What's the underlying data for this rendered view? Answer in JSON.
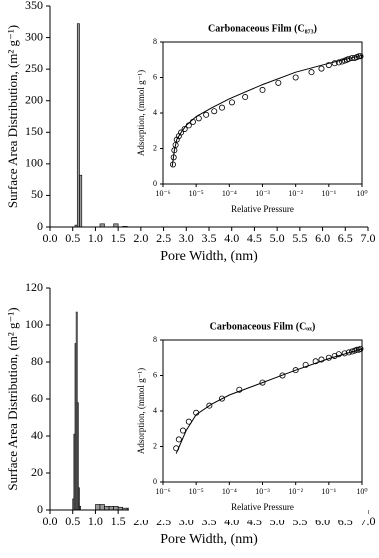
{
  "chart_data": [
    {
      "type": "histogram",
      "xlabel": "Pore Width, (nm)",
      "ylabel": "Surface Area Distribution, (m² g⁻¹)",
      "color": "#9a9a9a",
      "bins": [
        0.55,
        0.6,
        0.65,
        0.7,
        1.1,
        1.2,
        1.4,
        1.5,
        1.6,
        1.7
      ],
      "counts": [
        3,
        322,
        82,
        0,
        5,
        0,
        5,
        0,
        1
      ],
      "xlim": [
        0,
        7
      ],
      "xticks": [
        {
          "value": 0,
          "label": "0.0"
        },
        {
          "value": 0.5,
          "label": "0.5"
        },
        {
          "value": 1,
          "label": "1.0"
        },
        {
          "value": 1.5,
          "label": "1.5"
        },
        {
          "value": 2,
          "label": "2.0"
        },
        {
          "value": 2.5,
          "label": "2.5"
        },
        {
          "value": 3,
          "label": "3.0"
        },
        {
          "value": 3.5,
          "label": "3.5"
        },
        {
          "value": 4,
          "label": "4.0"
        },
        {
          "value": 4.5,
          "label": "4.5"
        },
        {
          "value": 5,
          "label": "5.0"
        },
        {
          "value": 5.5,
          "label": "5.5"
        },
        {
          "value": 6,
          "label": "6.0"
        },
        {
          "value": 6.5,
          "label": "6.5"
        },
        {
          "value": 7,
          "label": "7.0"
        }
      ],
      "ylim": [
        0,
        350
      ],
      "yticks": [
        0,
        50,
        100,
        150,
        200,
        250,
        300,
        350
      ]
    },
    {
      "type": "scatter",
      "title": "Carbonaceous Film (C₈₇₃)",
      "xlabel": "Relative Pressure",
      "ylabel": "Adsorption, (mmol g⁻¹)",
      "xscale": "log",
      "series": [
        {
          "type": "scatter",
          "color": "#000000",
          "x": [
            2e-06,
            2.1e-06,
            2.2e-06,
            2.4e-06,
            2.6e-06,
            3e-06,
            3.5e-06,
            4.5e-06,
            6e-06,
            8e-06,
            1.2e-05,
            2e-05,
            3.5e-05,
            6e-05,
            0.00012,
            0.0003,
            0.001,
            0.003,
            0.01,
            0.03,
            0.06,
            0.1,
            0.15,
            0.2,
            0.25,
            0.3,
            0.35,
            0.4,
            0.5,
            0.6,
            0.7,
            0.8,
            0.9
          ],
          "values": [
            1.1,
            1.5,
            1.9,
            2.2,
            2.5,
            2.7,
            2.9,
            3.1,
            3.3,
            3.5,
            3.7,
            3.9,
            4.1,
            4.3,
            4.6,
            4.9,
            5.3,
            5.7,
            6.0,
            6.3,
            6.5,
            6.7,
            6.8,
            6.85,
            6.9,
            6.95,
            7.0,
            7.05,
            7.1,
            7.1,
            7.15,
            7.2,
            7.2
          ]
        },
        {
          "type": "line",
          "color": "#000000",
          "x": [
            1.9e-06,
            2.2e-06,
            2.6e-06,
            3.5e-06,
            5e-06,
            1e-05,
            3e-05,
            0.0001,
            0.001,
            0.01,
            0.1,
            1
          ],
          "values": [
            1.0,
            1.9,
            2.5,
            2.9,
            3.3,
            3.8,
            4.3,
            4.8,
            5.6,
            6.3,
            6.8,
            7.25
          ]
        }
      ],
      "xlim": [
        1e-06,
        1
      ],
      "xticks": [
        {
          "value": 1e-06,
          "label": "10⁻⁶"
        },
        {
          "value": 1e-05,
          "label": "10⁻⁵"
        },
        {
          "value": 0.0001,
          "label": "10⁻⁴"
        },
        {
          "value": 0.001,
          "label": "10⁻³"
        },
        {
          "value": 0.01,
          "label": "10⁻²"
        },
        {
          "value": 0.1,
          "label": "10⁻¹"
        },
        {
          "value": 1,
          "label": "10⁰"
        }
      ],
      "ylim": [
        0,
        8
      ],
      "yticks": [
        0,
        2,
        4,
        6,
        8
      ]
    },
    {
      "type": "histogram",
      "xlabel": "Pore Width, (nm)",
      "ylabel": "Surface Area Distribution, (m² g⁻¹)",
      "color": "#9a9a9a",
      "bins": [
        0.5,
        0.525,
        0.55,
        0.575,
        0.6,
        0.625,
        0.65,
        0.675,
        1.0,
        1.1,
        1.2,
        1.3,
        1.4,
        1.5,
        1.6,
        1.7,
        1.8,
        1.9,
        2.0,
        2.1,
        2.2,
        2.3
      ],
      "counts": [
        6,
        41,
        90,
        107,
        58,
        12,
        2,
        0,
        3,
        3,
        2,
        2,
        2,
        1.5,
        1,
        1,
        1,
        1,
        0.5,
        0.5,
        0.5
      ],
      "xlim": [
        0,
        7
      ],
      "xticks": [
        {
          "value": 0,
          "label": "0.0"
        },
        {
          "value": 0.5,
          "label": "0.5"
        },
        {
          "value": 1,
          "label": "1.0"
        },
        {
          "value": 1.5,
          "label": "1.5"
        },
        {
          "value": 2,
          "label": "2.0"
        },
        {
          "value": 2.5,
          "label": "2.5"
        },
        {
          "value": 3,
          "label": "3.0"
        },
        {
          "value": 3.5,
          "label": "3.5"
        },
        {
          "value": 4,
          "label": "4.0"
        },
        {
          "value": 4.5,
          "label": "4.5"
        },
        {
          "value": 5,
          "label": "5.0"
        },
        {
          "value": 5.5,
          "label": "5.5"
        },
        {
          "value": 6,
          "label": "6.0"
        },
        {
          "value": 6.5,
          "label": "6.5"
        },
        {
          "value": 7,
          "label": "7.0"
        }
      ],
      "ylim": [
        0,
        120
      ],
      "yticks": [
        0,
        20,
        40,
        60,
        80,
        100,
        120
      ]
    },
    {
      "type": "scatter",
      "title": "Carbonaceous Film (Cₒₓ)",
      "xlabel": "Relative Pressure",
      "ylabel": "Adsorption, (mmol g⁻¹)",
      "xscale": "log",
      "series": [
        {
          "type": "scatter",
          "color": "#000000",
          "x": [
            2.5e-06,
            3e-06,
            4e-06,
            6e-06,
            1e-05,
            2.5e-05,
            6e-05,
            0.0002,
            0.001,
            0.004,
            0.01,
            0.02,
            0.04,
            0.06,
            0.1,
            0.15,
            0.2,
            0.3,
            0.4,
            0.5,
            0.6,
            0.7,
            0.8,
            0.9
          ],
          "values": [
            1.9,
            2.4,
            2.9,
            3.4,
            3.9,
            4.3,
            4.7,
            5.2,
            5.6,
            6.0,
            6.3,
            6.6,
            6.8,
            6.9,
            7.0,
            7.1,
            7.2,
            7.25,
            7.3,
            7.35,
            7.4,
            7.45,
            7.45,
            7.5
          ]
        },
        {
          "type": "line",
          "color": "#000000",
          "x": [
            2.5e-06,
            5e-06,
            1e-05,
            3e-05,
            0.0001,
            0.001,
            0.01,
            0.1,
            1
          ],
          "values": [
            1.6,
            2.9,
            3.8,
            4.4,
            4.9,
            5.6,
            6.3,
            6.95,
            7.5
          ]
        }
      ],
      "xlim": [
        1e-06,
        1
      ],
      "xticks": [
        {
          "value": 1e-06,
          "label": "10⁻⁶"
        },
        {
          "value": 1e-05,
          "label": "10⁻⁵"
        },
        {
          "value": 0.0001,
          "label": "10⁻⁴"
        },
        {
          "value": 0.001,
          "label": "10⁻³"
        },
        {
          "value": 0.01,
          "label": "10⁻²"
        },
        {
          "value": 0.1,
          "label": "10⁻¹"
        },
        {
          "value": 1,
          "label": "10⁰"
        }
      ],
      "ylim": [
        0,
        8
      ],
      "yticks": [
        0,
        2,
        4,
        6,
        8
      ]
    }
  ]
}
